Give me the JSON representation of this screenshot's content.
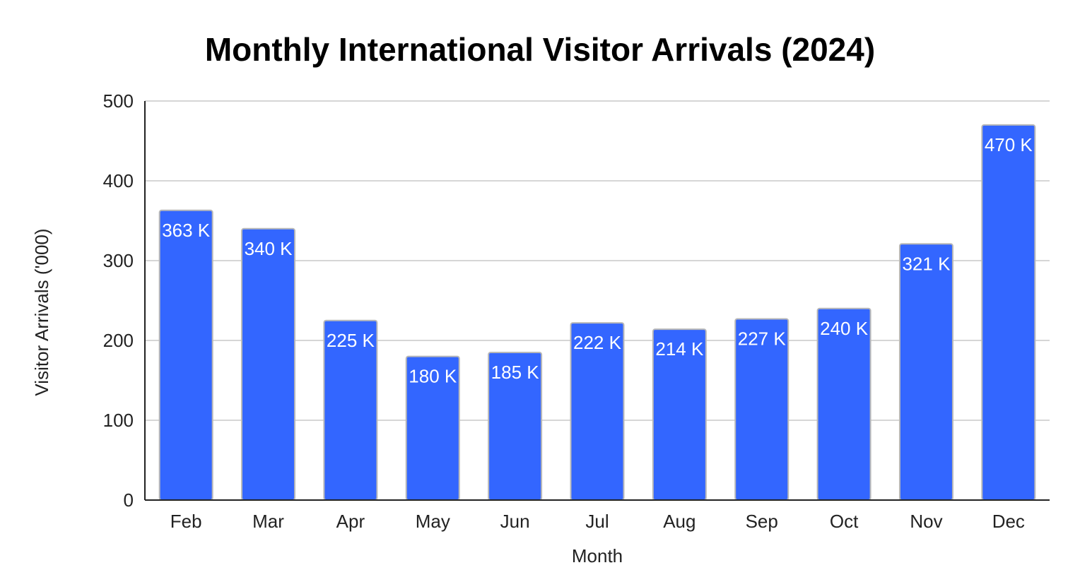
{
  "chart_data": {
    "type": "bar",
    "title": "Monthly International Visitor Arrivals (2024)",
    "xlabel": "Month",
    "ylabel": "Visitor Arrivals ('000)",
    "categories": [
      "Feb",
      "Mar",
      "Apr",
      "May",
      "Jun",
      "Jul",
      "Aug",
      "Sep",
      "Oct",
      "Nov",
      "Dec"
    ],
    "values": [
      363,
      340,
      225,
      180,
      185,
      222,
      214,
      227,
      240,
      321,
      470
    ],
    "data_labels": [
      "363 K",
      "340 K",
      "225 K",
      "180 K",
      "185 K",
      "222 K",
      "214 K",
      "227 K",
      "240 K",
      "321 K",
      "470 K"
    ],
    "ylim": [
      0,
      500
    ],
    "yticks": [
      "0",
      "100",
      "200",
      "300",
      "400",
      "500"
    ],
    "grid": true,
    "legend": "none",
    "bar_color": "#3366ff",
    "bar_edge_color": "#b8b8b8"
  }
}
